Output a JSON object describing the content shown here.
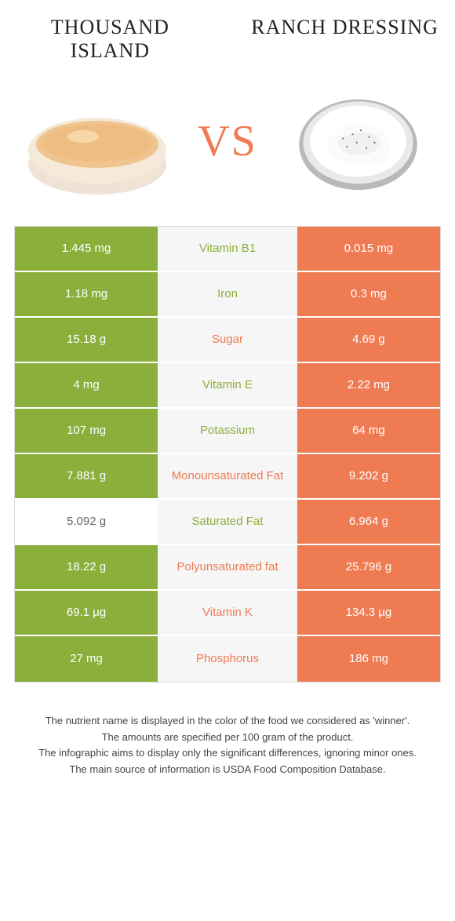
{
  "left_title": "THOUSAND ISLAND",
  "right_title": "RANCH DRESSING",
  "vs_label": "VS",
  "colors": {
    "left": "#8aaf3a",
    "right": "#ef7b53",
    "mid_bg": "#f6f6f6",
    "table_border": "#d9d9d9",
    "page_bg": "#ffffff",
    "text": "#333333"
  },
  "typography": {
    "title_fontsize": 26,
    "vs_fontsize": 56,
    "cell_fontsize": 15,
    "footnote_fontsize": 13
  },
  "rows": [
    {
      "left": "1.445 mg",
      "label": "Vitamin B1",
      "right": "0.015 mg",
      "winner": "left",
      "left_bg": "green",
      "right_bg": "orange"
    },
    {
      "left": "1.18 mg",
      "label": "Iron",
      "right": "0.3 mg",
      "winner": "left",
      "left_bg": "green",
      "right_bg": "orange"
    },
    {
      "left": "15.18 g",
      "label": "Sugar",
      "right": "4.69 g",
      "winner": "right",
      "left_bg": "green",
      "right_bg": "orange"
    },
    {
      "left": "4 mg",
      "label": "Vitamin E",
      "right": "2.22 mg",
      "winner": "left",
      "left_bg": "green",
      "right_bg": "orange"
    },
    {
      "left": "107 mg",
      "label": "Potassium",
      "right": "64 mg",
      "winner": "left",
      "left_bg": "green",
      "right_bg": "orange"
    },
    {
      "left": "7.881 g",
      "label": "Monounsaturated Fat",
      "right": "9.202 g",
      "winner": "right",
      "left_bg": "green",
      "right_bg": "orange"
    },
    {
      "left": "5.092 g",
      "label": "Saturated Fat",
      "right": "6.964 g",
      "winner": "left",
      "left_bg": "white",
      "right_bg": "orange"
    },
    {
      "left": "18.22 g",
      "label": "Polyunsaturated fat",
      "right": "25.796 g",
      "winner": "right",
      "left_bg": "green",
      "right_bg": "orange"
    },
    {
      "left": "69.1 µg",
      "label": "Vitamin K",
      "right": "134.3 µg",
      "winner": "right",
      "left_bg": "green",
      "right_bg": "orange"
    },
    {
      "left": "27 mg",
      "label": "Phosphorus",
      "right": "186 mg",
      "winner": "right",
      "left_bg": "green",
      "right_bg": "orange"
    }
  ],
  "footnotes": [
    "The nutrient name is displayed in the color of the food we considered as 'winner'.",
    "The amounts are specified per 100 gram of the product.",
    "The infographic aims to display only the significant differences, ignoring minor ones.",
    "The main source of information is USDA Food Composition Database."
  ],
  "images": {
    "left_alt": "thousand-island-bowl",
    "right_alt": "ranch-dressing-bowl"
  }
}
